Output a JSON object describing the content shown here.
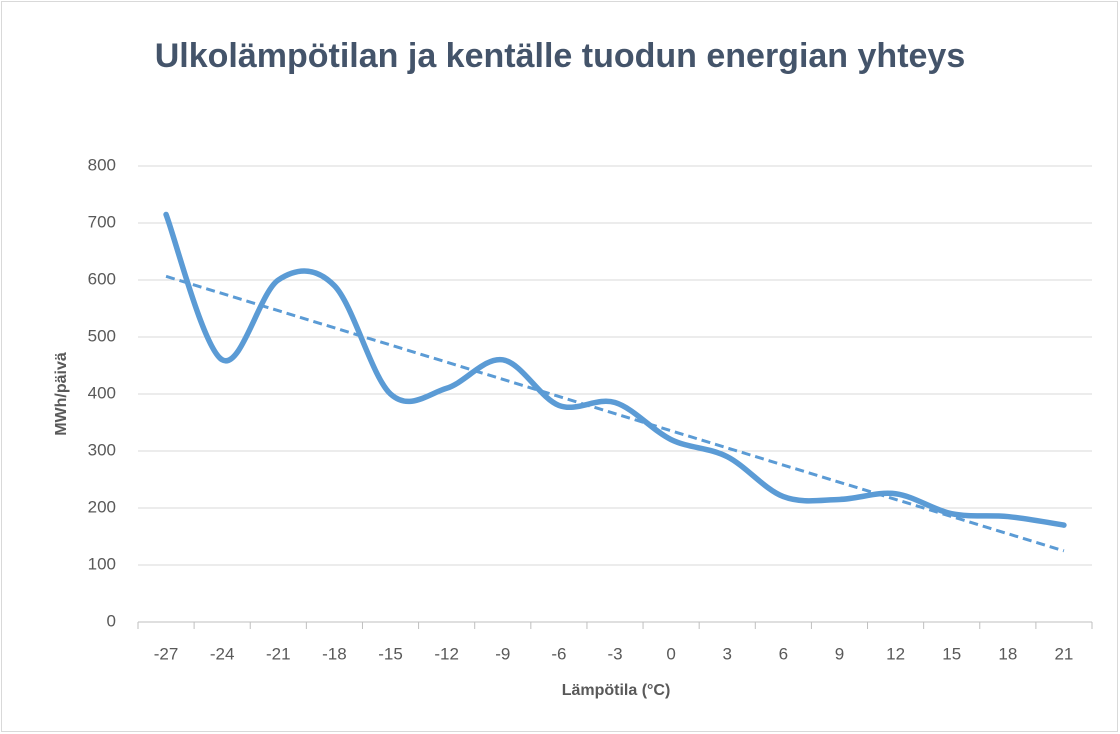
{
  "chart_data": {
    "type": "line",
    "title": "Ulkolämpötilan ja kentälle tuodun energian yhteys",
    "x_label": "Lämpötila (°C)",
    "y_label": "MWh/päivä",
    "categories": [
      "-27",
      "-24",
      "-21",
      "-18",
      "-15",
      "-12",
      "-9",
      "-6",
      "-3",
      "0",
      "3",
      "6",
      "9",
      "12",
      "15",
      "18",
      "21"
    ],
    "values": [
      715,
      460,
      600,
      590,
      400,
      410,
      460,
      380,
      385,
      320,
      290,
      220,
      215,
      225,
      190,
      185,
      170
    ],
    "color": "#5b9bd5",
    "smooth": true,
    "trendline": {
      "type": "linear",
      "dashed": true,
      "color": "#5b9bd5"
    },
    "ylim": [
      0,
      800
    ],
    "yticks": [
      0,
      100,
      200,
      300,
      400,
      500,
      600,
      700,
      800
    ],
    "grid": true
  }
}
